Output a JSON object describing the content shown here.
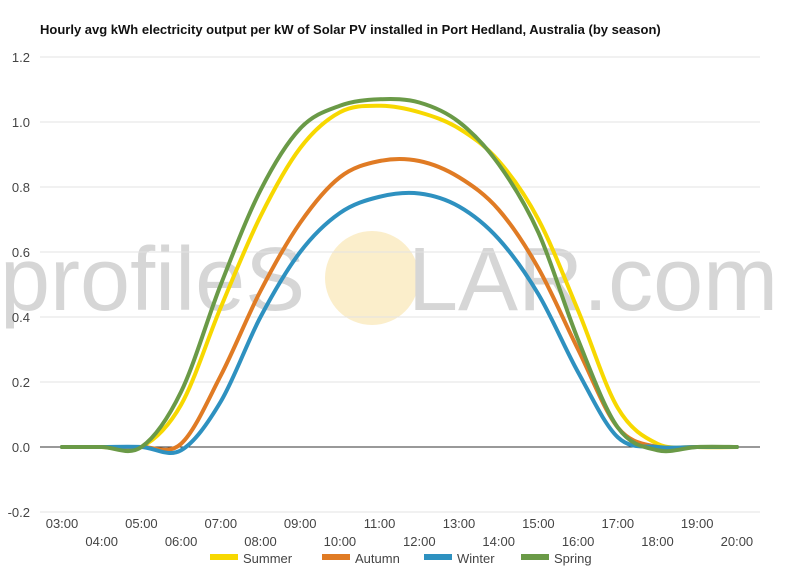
{
  "watermark": {
    "left": "profileS",
    "right": "LAR.com",
    "sun_color": "#fbeecb"
  },
  "chart_data": {
    "type": "line",
    "title": "Hourly avg kWh electricity output per kW of Solar PV installed in Port Hedland, Australia (by season)",
    "xlabel": "",
    "ylabel": "",
    "x_ticks_upper": [
      "03:00",
      "05:00",
      "07:00",
      "09:00",
      "11:00",
      "13:00",
      "15:00",
      "17:00",
      "19:00"
    ],
    "x_ticks_lower": [
      "04:00",
      "06:00",
      "08:00",
      "10:00",
      "12:00",
      "14:00",
      "16:00",
      "18:00",
      "20:00"
    ],
    "x": [
      "03:00",
      "04:00",
      "05:00",
      "06:00",
      "07:00",
      "08:00",
      "09:00",
      "10:00",
      "11:00",
      "12:00",
      "13:00",
      "14:00",
      "15:00",
      "16:00",
      "17:00",
      "18:00",
      "19:00",
      "20:00"
    ],
    "y_ticks": [
      "1.2",
      "1.0",
      "0.8",
      "0.6",
      "0.4",
      "0.2",
      "0.0",
      "-0.2"
    ],
    "ylim": [
      -0.2,
      1.2
    ],
    "grid": true,
    "legend_position": "bottom",
    "series": [
      {
        "name": "Summer",
        "color": "#f7d800",
        "values": [
          0,
          0,
          0,
          0.13,
          0.43,
          0.71,
          0.92,
          1.03,
          1.05,
          1.03,
          0.98,
          0.88,
          0.7,
          0.42,
          0.12,
          0.01,
          0,
          0
        ]
      },
      {
        "name": "Autumn",
        "color": "#e07b24",
        "values": [
          0,
          0,
          0,
          0.01,
          0.22,
          0.48,
          0.69,
          0.83,
          0.88,
          0.88,
          0.83,
          0.73,
          0.55,
          0.3,
          0.06,
          0,
          0,
          0
        ]
      },
      {
        "name": "Winter",
        "color": "#2e91c0",
        "values": [
          0,
          0,
          0,
          -0.01,
          0.14,
          0.4,
          0.6,
          0.72,
          0.77,
          0.78,
          0.74,
          0.64,
          0.47,
          0.23,
          0.03,
          0,
          0,
          0
        ]
      },
      {
        "name": "Spring",
        "color": "#6a9a47",
        "values": [
          0,
          0,
          0,
          0.17,
          0.5,
          0.79,
          0.98,
          1.05,
          1.07,
          1.06,
          1.0,
          0.87,
          0.66,
          0.33,
          0.06,
          -0.01,
          0,
          0
        ]
      }
    ]
  }
}
